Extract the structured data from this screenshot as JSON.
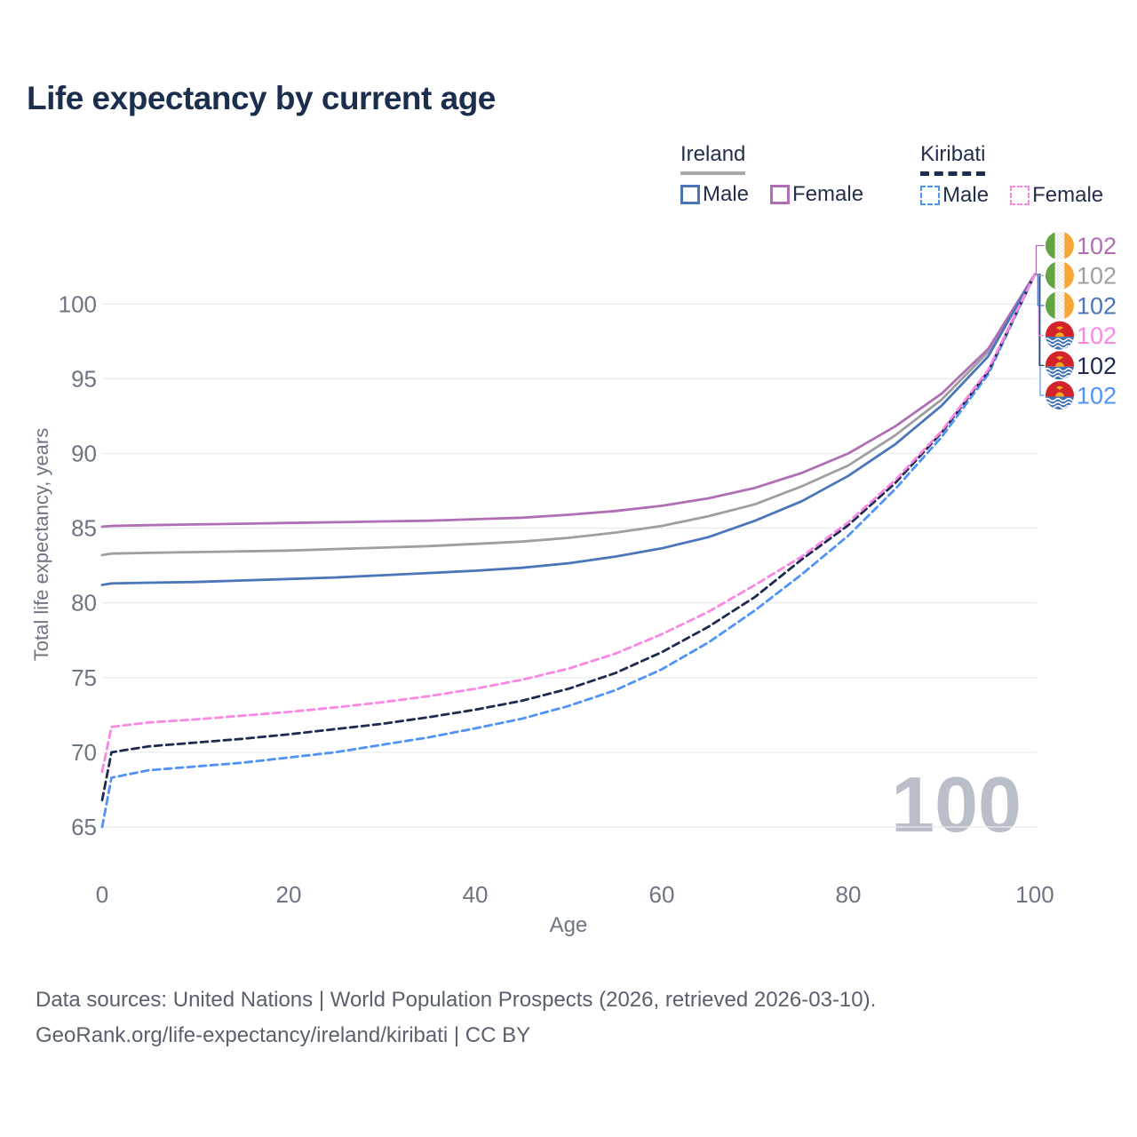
{
  "title": "Life expectancy by current age",
  "legend": {
    "groups": [
      {
        "label": "Ireland",
        "line_style": "solid",
        "underline_color": "#a8a8a8",
        "items": [
          {
            "label": "Male",
            "color": "#4a76b9"
          },
          {
            "label": "Female",
            "color": "#b06fb5"
          }
        ]
      },
      {
        "label": "Kiribati",
        "line_style": "dashed",
        "underline_color": "#1e2b4f",
        "items": [
          {
            "label": "Male",
            "color": "#4f93f7"
          },
          {
            "label": "Female",
            "color": "#fb87e4"
          }
        ]
      }
    ]
  },
  "watermark": "100",
  "footer": {
    "line1": "Data sources: United Nations | World Population Prospects (2026, retrieved 2026-03-10).",
    "line2": "GeoRank.org/life-expectancy/ireland/kiribati | CC BY"
  },
  "colors": {
    "title_text": "#1c2e4d",
    "axis_text": "#6d7582",
    "gridline": "#e9ebee",
    "watermark": "#b9bec8"
  },
  "chart_data": {
    "type": "line",
    "title": "Life expectancy by current age",
    "xlabel": "Age",
    "ylabel": "Total life expectancy, years",
    "xlim": [
      0,
      100
    ],
    "ylim": [
      63.5,
      103
    ],
    "xticks": [
      0,
      20,
      40,
      60,
      80,
      100
    ],
    "yticks": [
      65,
      70,
      75,
      80,
      85,
      90,
      95,
      100
    ],
    "grid": "horizontal-only",
    "legend_position": "top-right",
    "x": [
      0,
      1,
      5,
      10,
      15,
      20,
      25,
      30,
      35,
      40,
      45,
      50,
      55,
      60,
      65,
      70,
      75,
      80,
      85,
      90,
      95,
      100
    ],
    "series": [
      {
        "name": "Ireland (both sexes)",
        "country": "Ireland",
        "sex": "both",
        "color": "#9e9ea3",
        "dashed": false,
        "row": 1,
        "end_label": "102",
        "values": [
          83.2,
          83.3,
          83.35,
          83.4,
          83.45,
          83.5,
          83.6,
          83.7,
          83.8,
          83.95,
          84.1,
          84.35,
          84.7,
          85.15,
          85.8,
          86.6,
          87.8,
          89.2,
          91.2,
          93.6,
          96.8,
          102.0
        ]
      },
      {
        "name": "Ireland Female",
        "country": "Ireland",
        "sex": "female",
        "color": "#b06fb5",
        "dashed": false,
        "row": 0,
        "end_label": "102",
        "values": [
          85.1,
          85.15,
          85.2,
          85.25,
          85.3,
          85.35,
          85.4,
          85.45,
          85.5,
          85.6,
          85.7,
          85.9,
          86.15,
          86.5,
          87.0,
          87.7,
          88.7,
          90.0,
          91.8,
          94.0,
          97.0,
          102.0
        ]
      },
      {
        "name": "Ireland Male",
        "country": "Ireland",
        "sex": "male",
        "color": "#4a76b9",
        "dashed": false,
        "row": 2,
        "end_label": "102",
        "values": [
          81.2,
          81.3,
          81.35,
          81.4,
          81.5,
          81.6,
          81.7,
          81.85,
          82.0,
          82.15,
          82.35,
          82.65,
          83.1,
          83.65,
          84.4,
          85.5,
          86.8,
          88.5,
          90.6,
          93.2,
          96.5,
          102.0
        ]
      },
      {
        "name": "Kiribati Male",
        "country": "Kiribati",
        "sex": "male",
        "color": "#4f93f7",
        "dashed": true,
        "row": 5,
        "end_label": "102",
        "values": [
          65.0,
          68.3,
          68.8,
          69.05,
          69.3,
          69.65,
          70.0,
          70.5,
          71.0,
          71.6,
          72.25,
          73.1,
          74.15,
          75.55,
          77.35,
          79.5,
          81.9,
          84.5,
          87.6,
          91.1,
          95.3,
          102.0
        ]
      },
      {
        "name": "Kiribati (both sexes)",
        "country": "Kiribati",
        "sex": "both",
        "color": "#1e2b4f",
        "dashed": true,
        "row": 4,
        "end_label": "102",
        "values": [
          66.8,
          70.0,
          70.4,
          70.65,
          70.9,
          71.2,
          71.55,
          71.9,
          72.35,
          72.85,
          73.45,
          74.25,
          75.3,
          76.7,
          78.4,
          80.4,
          82.9,
          85.2,
          88.0,
          91.4,
          95.5,
          102.0
        ]
      },
      {
        "name": "Kiribati Female",
        "country": "Kiribati",
        "sex": "female",
        "color": "#fb87e4",
        "dashed": true,
        "row": 3,
        "end_label": "102",
        "values": [
          68.7,
          71.7,
          72.0,
          72.2,
          72.45,
          72.7,
          73.0,
          73.35,
          73.75,
          74.25,
          74.85,
          75.6,
          76.6,
          77.9,
          79.4,
          81.2,
          83.1,
          85.4,
          88.2,
          91.5,
          95.6,
          102.0
        ]
      }
    ],
    "flags_by_row": [
      "ireland",
      "ireland",
      "ireland",
      "kiribati",
      "kiribati",
      "kiribati"
    ]
  }
}
